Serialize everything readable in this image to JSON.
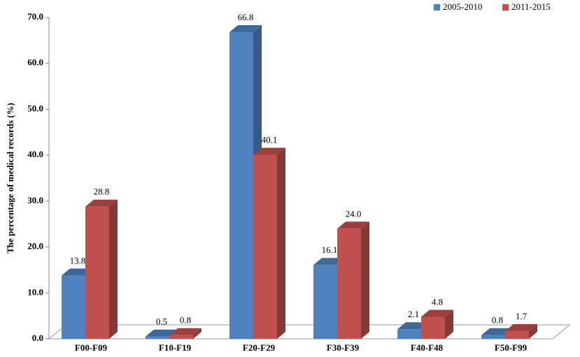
{
  "chart_data": {
    "type": "bar3d",
    "y_label": "The percentage of medical records (%)",
    "categories": [
      "F00-F09",
      "F10-F19",
      "F20-F29",
      "F30-F39",
      "F40-F48",
      "F50-F99"
    ],
    "series": [
      {
        "name": "2005-2010",
        "color": "#4f81bd",
        "values": [
          13.8,
          0.5,
          66.8,
          16.1,
          2.1,
          0.8
        ],
        "value_labels": [
          "13.8",
          "0.5",
          "66.8",
          "16.1",
          "2.1",
          "0.8"
        ]
      },
      {
        "name": "2011-2015",
        "color": "#c0504d",
        "values": [
          28.8,
          0.8,
          40.1,
          24.0,
          4.8,
          1.7
        ],
        "value_labels": [
          "28.8",
          "0.8",
          "40.1",
          "24.0",
          "4.8",
          "1.7"
        ]
      }
    ],
    "ylim": [
      0,
      70
    ],
    "yticks": [
      {
        "value": 0,
        "label": "0.0"
      },
      {
        "value": 10,
        "label": "10.0"
      },
      {
        "value": 20,
        "label": "20.0"
      },
      {
        "value": 30,
        "label": "30.0"
      },
      {
        "value": 40,
        "label": "40.0"
      },
      {
        "value": 50,
        "label": "50.0"
      },
      {
        "value": 60,
        "label": "60.0"
      },
      {
        "value": 70,
        "label": "70.0"
      }
    ],
    "legend": "top-right"
  }
}
